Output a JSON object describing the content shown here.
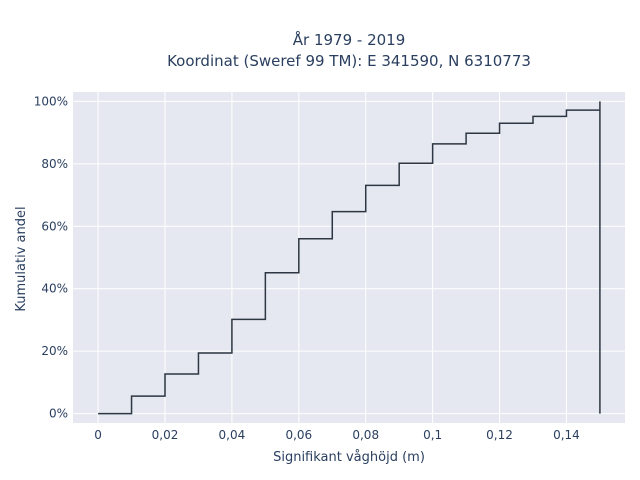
{
  "chart_data": {
    "type": "line",
    "step": true,
    "title_lines": [
      "År 1979 - 2019",
      "Koordinat (Sweref 99 TM): E 341590, N 6310773"
    ],
    "xlabel": "Signifikant våghöjd (m)",
    "ylabel": "Kumulativ andel",
    "xlim": [
      -0.0075,
      0.1575
    ],
    "ylim": [
      -0.03,
      1.03
    ],
    "x_ticks": [
      0,
      0.02,
      0.04,
      0.06,
      0.08,
      0.1,
      0.12,
      0.14
    ],
    "x_tick_labels": [
      "0",
      "0,02",
      "0,04",
      "0,06",
      "0,08",
      "0,1",
      "0,12",
      "0,14"
    ],
    "y_ticks": [
      0,
      0.2,
      0.4,
      0.6,
      0.8,
      1.0
    ],
    "y_tick_labels": [
      "0%",
      "20%",
      "40%",
      "60%",
      "80%",
      "100%"
    ],
    "grid": true,
    "legend": "none",
    "x": [
      0,
      0.01,
      0.02,
      0.03,
      0.04,
      0.05,
      0.06,
      0.07,
      0.08,
      0.09,
      0.1,
      0.11,
      0.12,
      0.13,
      0.14,
      0.15
    ],
    "y": [
      0.0,
      0.056,
      0.127,
      0.194,
      0.302,
      0.451,
      0.56,
      0.647,
      0.731,
      0.802,
      0.864,
      0.898,
      0.93,
      0.952,
      0.972,
      1.0
    ],
    "final_x": 0.15,
    "final_drop_to": 0.0,
    "colors": {
      "line": "#2d3642",
      "plot_bg": "#e5e8f0",
      "grid": "#ffffff",
      "text": "#2a3f5f"
    }
  }
}
